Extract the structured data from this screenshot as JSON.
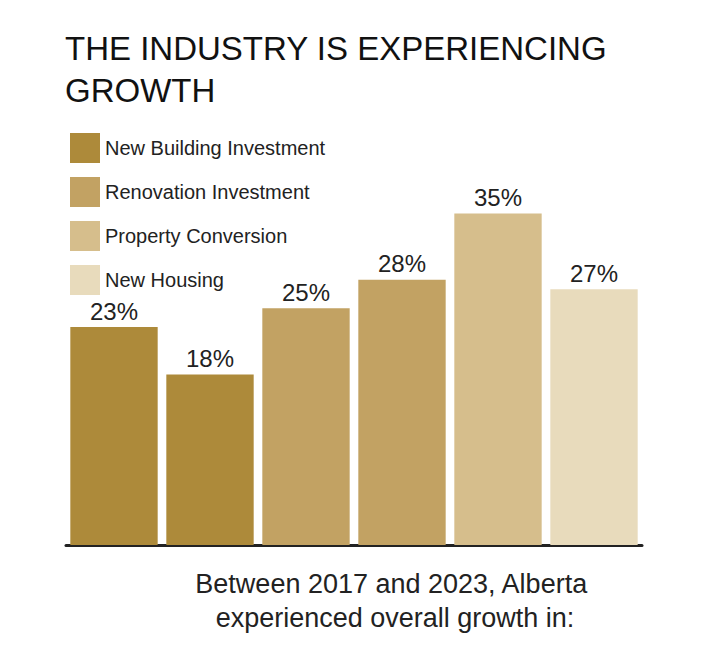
{
  "chart_data": {
    "type": "bar",
    "title": "THE INDUSTRY IS EXPERIENCING GROWTH",
    "xlabel": "Between 2017 and 2023, Alberta experienced overall growth in:",
    "categories": [
      null,
      null,
      null,
      null,
      null,
      null
    ],
    "series": [
      {
        "name": "New Building Investment",
        "color": "#ad8a3a",
        "values": [
          23,
          18,
          null,
          null,
          null,
          null
        ],
        "value_labels": [
          "23%",
          "18%",
          null,
          null,
          null,
          null
        ]
      },
      {
        "name": "Renovation Investment",
        "color": "#c2a263",
        "values": [
          null,
          null,
          25,
          28,
          null,
          null
        ],
        "value_labels": [
          null,
          null,
          "25%",
          "28%",
          null,
          null
        ]
      },
      {
        "name": "Property Conversion",
        "color": "#d6be8c",
        "values": [
          null,
          null,
          null,
          null,
          35,
          null
        ],
        "value_labels": [
          null,
          null,
          null,
          null,
          "35%",
          null
        ]
      },
      {
        "name": "New Housing",
        "color": "#e8dbbc",
        "values": [
          null,
          null,
          null,
          null,
          null,
          27
        ],
        "value_labels": [
          null,
          null,
          null,
          null,
          null,
          "27%"
        ]
      }
    ],
    "ylim": [
      0,
      40
    ],
    "stacked": true,
    "data_labels": true,
    "tick_labels": false,
    "grid": false,
    "legend": "upper left"
  }
}
